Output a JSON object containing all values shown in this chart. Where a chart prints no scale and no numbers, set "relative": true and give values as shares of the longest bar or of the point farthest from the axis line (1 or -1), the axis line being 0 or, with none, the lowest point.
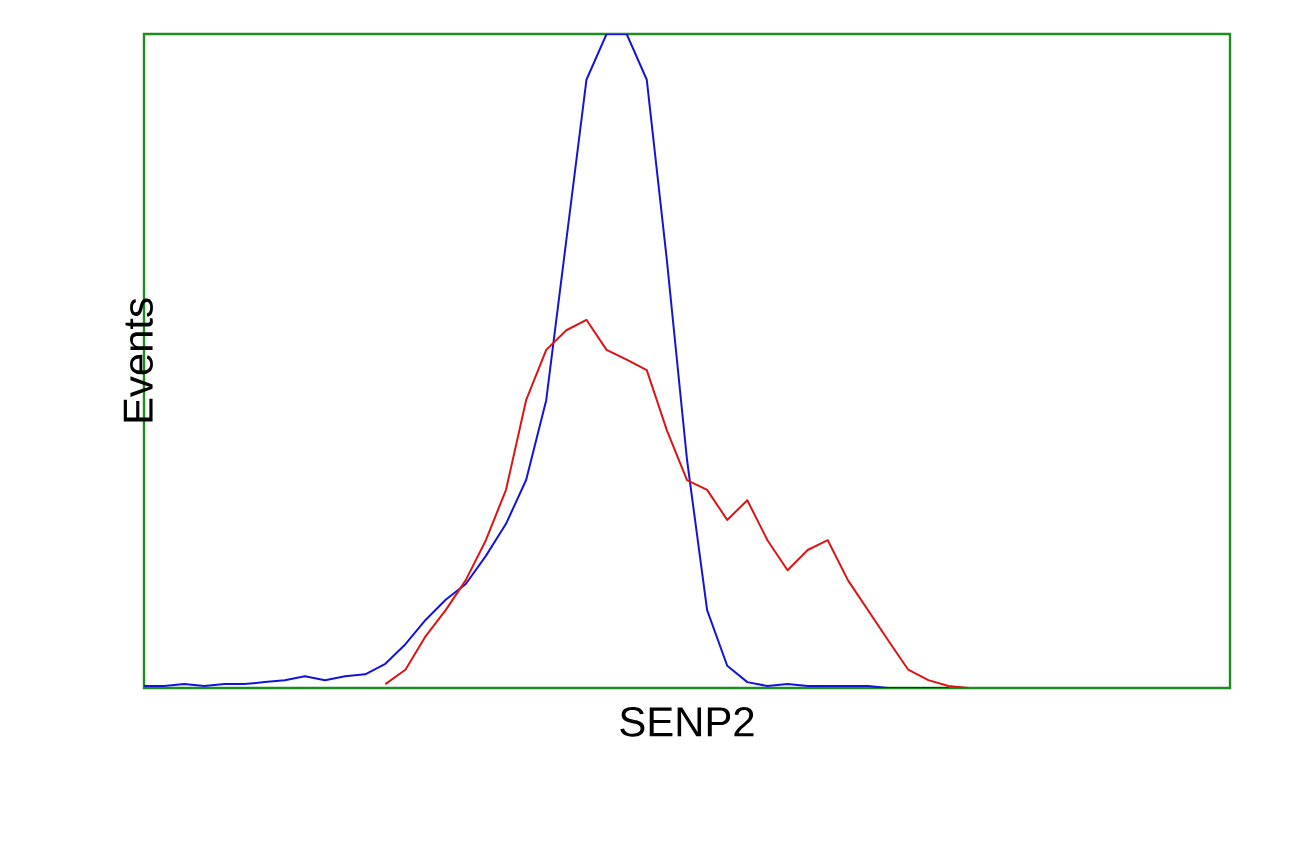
{
  "chart_data": {
    "type": "line",
    "relative": true,
    "xlabel": "SENP2",
    "ylabel": "Events",
    "marker": "none",
    "line_style": "solid",
    "categories": [
      null,
      null,
      null,
      null,
      null,
      null,
      null,
      null,
      null,
      null,
      null,
      null,
      null,
      null,
      null,
      null,
      null,
      null,
      null,
      null,
      null,
      null,
      null,
      null,
      null,
      null,
      null,
      null,
      null,
      null,
      null,
      null,
      null,
      null,
      null,
      null,
      null,
      null,
      null,
      null,
      null,
      null,
      null,
      null,
      null,
      null,
      null,
      null,
      null,
      null,
      null,
      null,
      null,
      null,
      null
    ],
    "series": [
      {
        "color": "#1414d8",
        "values": [
          0.003,
          0.003,
          0.006,
          0.003,
          0.006,
          0.006,
          0.009,
          0.012,
          0.018,
          0.012,
          0.018,
          0.021,
          0.037,
          0.067,
          0.104,
          0.135,
          0.159,
          0.202,
          0.251,
          0.318,
          0.44,
          0.685,
          0.93,
          1,
          1,
          0.93,
          0.654,
          0.349,
          0.119,
          0.034,
          0.009,
          0.003,
          0.006,
          0.003,
          0.003,
          0.003,
          0.003,
          0,
          0,
          0,
          0,
          null,
          null,
          null,
          null,
          null,
          null,
          null,
          null,
          null,
          null,
          null,
          null,
          null,
          null
        ]
      },
      {
        "color": "#dc1414",
        "values": [
          null,
          null,
          null,
          null,
          null,
          null,
          null,
          null,
          null,
          null,
          null,
          null,
          0.006,
          0.028,
          0.079,
          0.119,
          0.165,
          0.226,
          0.303,
          0.44,
          0.517,
          0.547,
          0.563,
          0.517,
          0.502,
          0.486,
          0.394,
          0.318,
          0.303,
          0.257,
          0.287,
          0.226,
          0.18,
          0.211,
          0.226,
          0.165,
          0.119,
          0.073,
          0.028,
          0.012,
          0.003,
          0,
          null,
          null,
          null,
          null,
          null,
          null,
          null,
          null,
          null,
          null,
          null,
          null,
          null
        ]
      }
    ]
  }
}
